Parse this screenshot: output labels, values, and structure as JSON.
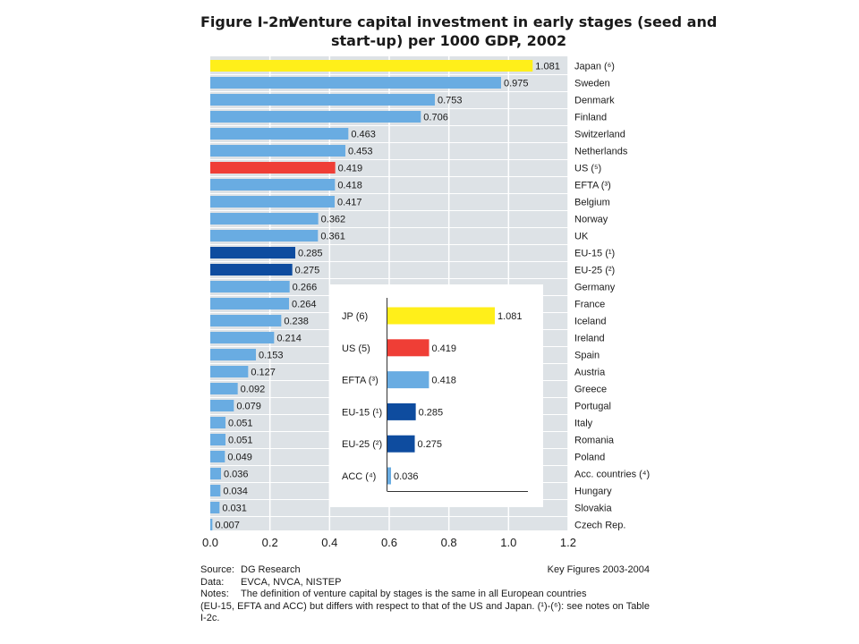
{
  "title": {
    "figure_label": "Figure I-2m",
    "line1": "Venture capital investment in early stages (seed and",
    "line2": "start-up) per 1000 GDP, 2002"
  },
  "colors": {
    "default": "#69ace2",
    "highlight_japan": "#ffef1a",
    "highlight_us": "#ef3e36",
    "highlight_eu": "#0e4c9f",
    "plot_bg": "#dde2e6",
    "grid": "#ffffff"
  },
  "chart_data": [
    {
      "type": "bar",
      "orientation": "horizontal",
      "title": "Venture capital investment in early stages (seed and start-up) per 1000 GDP, 2002",
      "categories": [
        "Japan (6)",
        "Sweden",
        "Denmark",
        "Finland",
        "Switzerland",
        "Netherlands",
        "US (5)",
        "EFTA (3)",
        "Belgium",
        "Norway",
        "UK",
        "EU-15 (1)",
        "EU-25 (2)",
        "Germany",
        "France",
        "Iceland",
        "Ireland",
        "Spain",
        "Austria",
        "Greece",
        "Portugal",
        "Italy",
        "Romania",
        "Poland",
        "Acc. countries (4)",
        "Hungary",
        "Slovakia",
        "Czech Rep."
      ],
      "category_labels": [
        "Japan (⁶)",
        "Sweden",
        "Denmark",
        "Finland",
        "Switzerland",
        "Netherlands",
        "US (⁵)",
        "EFTA (³)",
        "Belgium",
        "Norway",
        "UK",
        "EU-15 (¹)",
        "EU-25 (²)",
        "Germany",
        "France",
        "Iceland",
        "Ireland",
        "Spain",
        "Austria",
        "Greece",
        "Portugal",
        "Italy",
        "Romania",
        "Poland",
        "Acc. countries (⁴)",
        "Hungary",
        "Slovakia",
        "Czech Rep."
      ],
      "values": [
        1.081,
        0.975,
        0.753,
        0.706,
        0.463,
        0.453,
        0.419,
        0.418,
        0.417,
        0.362,
        0.361,
        0.285,
        0.275,
        0.266,
        0.264,
        0.238,
        0.214,
        0.153,
        0.127,
        0.092,
        0.079,
        0.051,
        0.051,
        0.049,
        0.036,
        0.034,
        0.031,
        0.007
      ],
      "value_labels": [
        "1.081",
        "0.975",
        "0.753",
        "0.706",
        "0.463",
        "0.453",
        "0.419",
        "0.418",
        "0.417",
        "0.362",
        "0.361",
        "0.285",
        "0.275",
        "0.266",
        "0.264",
        "0.238",
        "0.214",
        "0.153",
        "0.127",
        "0.092",
        "0.079",
        "0.051",
        "0.051",
        "0.049",
        "0.036",
        "0.034",
        "0.031",
        "0.007"
      ],
      "bar_colors": [
        "#ffef1a",
        "#69ace2",
        "#69ace2",
        "#69ace2",
        "#69ace2",
        "#69ace2",
        "#ef3e36",
        "#69ace2",
        "#69ace2",
        "#69ace2",
        "#69ace2",
        "#0e4c9f",
        "#0e4c9f",
        "#69ace2",
        "#69ace2",
        "#69ace2",
        "#69ace2",
        "#69ace2",
        "#69ace2",
        "#69ace2",
        "#69ace2",
        "#69ace2",
        "#69ace2",
        "#69ace2",
        "#69ace2",
        "#69ace2",
        "#69ace2",
        "#69ace2"
      ],
      "xticks": [
        "0.0",
        "0.2",
        "0.4",
        "0.6",
        "0.8",
        "1.0",
        "1.2"
      ],
      "xlim": [
        0,
        1.2
      ],
      "grid": true,
      "xlabel": "",
      "ylabel": ""
    },
    {
      "type": "bar",
      "orientation": "horizontal",
      "inset": true,
      "categories": [
        "JP (6)",
        "US (5)",
        "EFTA (3)",
        "EU-15 (1)",
        "EU-25 (2)",
        "ACC (4)"
      ],
      "category_labels": [
        "JP (6)",
        "US (5)",
        "EFTA (³)",
        "EU-15 (¹)",
        "EU-25 (²)",
        "ACC (⁴)"
      ],
      "values": [
        1.081,
        0.419,
        0.418,
        0.285,
        0.275,
        0.036
      ],
      "value_labels": [
        "1.081",
        "0.419",
        "0.418",
        "0.285",
        "0.275",
        "0.036"
      ],
      "bar_colors": [
        "#ffef1a",
        "#ef3e36",
        "#69ace2",
        "#0e4c9f",
        "#0e4c9f",
        "#69ace2"
      ],
      "xlim": [
        0,
        1.2
      ]
    }
  ],
  "footer": {
    "source_label": "Source:",
    "source_value": "DG Research",
    "key_figures": "Key Figures 2003-2004",
    "data_label": "Data:",
    "data_value": "EVCA, NVCA, NISTEP",
    "notes_label": "Notes:",
    "notes_line1": "The definition of venture capital by stages is the same in all European countries",
    "notes_rest": "(EU-15, EFTA and ACC) but differs with respect to that of the US and Japan. (¹)-(⁶): see notes on Table I-2c."
  }
}
